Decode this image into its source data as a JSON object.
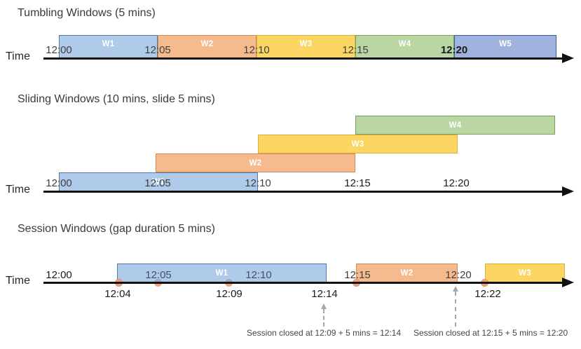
{
  "tumbling": {
    "title": "Tumbling Windows (5 mins)",
    "time_label": "Time",
    "windows": {
      "w1": "W1",
      "w2": "W2",
      "w3": "W3",
      "w4": "W4",
      "w5": "W5"
    },
    "ticks": {
      "t0": "12:00",
      "t1": "12:05",
      "t2": "12:10",
      "t3": "12:15",
      "t4": "12:20"
    }
  },
  "sliding": {
    "title": "Sliding Windows (10 mins, slide 5 mins)",
    "time_label": "Time",
    "windows": {
      "w1": "W1",
      "w2": "W2",
      "w3": "W3",
      "w4": "W4"
    },
    "ticks": {
      "t0": "12:00",
      "t1": "12:05",
      "t2": "12:10",
      "t3": "12:15",
      "t4": "12:20"
    }
  },
  "session": {
    "title": "Session Windows (gap duration 5 mins)",
    "time_label": "Time",
    "windows": {
      "w1": "W1",
      "w2": "W2",
      "w3": "W3"
    },
    "ticks": {
      "t0": "12:00",
      "t1": "12:05",
      "t2": "12:10",
      "t3": "12:15",
      "t4": "12:20"
    },
    "events": {
      "e1": "12:04",
      "e2": "12:09",
      "e3": "12:14",
      "e4": "12:22"
    },
    "annotations": {
      "a1": "Session closed at 12:09 + 5 mins = 12:14",
      "a2": "Session closed at 12:15 + 5 mins = 12:20"
    }
  },
  "colors": {
    "window_blue_fill": "#AFCBE9",
    "window_blue_border": "#4E79A9",
    "window_orange_fill": "#F5BB8F",
    "window_orange_border": "#D18A5A",
    "window_yellow_fill": "#FBD662",
    "window_yellow_border": "#D9B13B",
    "window_green_fill": "#B9D6A3",
    "window_green_border": "#74A057",
    "window_indigo_fill": "#9FB3DE",
    "window_indigo_border": "#3F5F9E",
    "event_dot": "#F1A27C",
    "dashed_arrow_gray": "#A8A8A8",
    "axis_black": "#111111"
  }
}
